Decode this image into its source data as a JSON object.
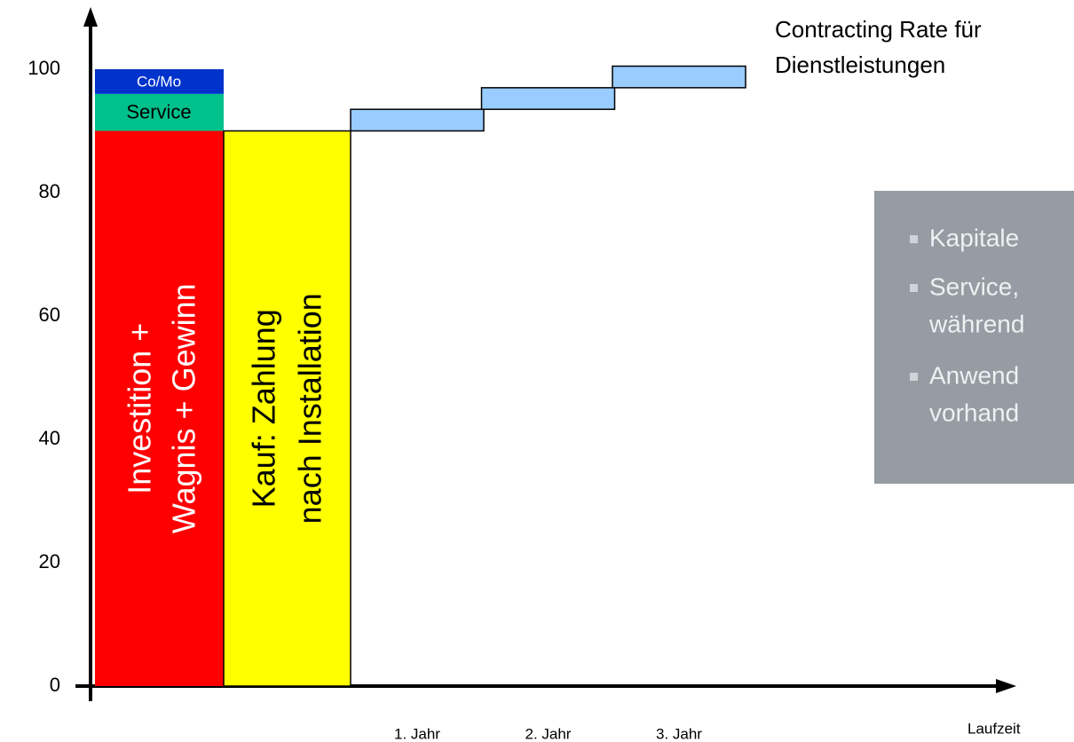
{
  "chart_data": {
    "type": "step",
    "title_lines": [
      "Contracting Rate für",
      "Dienstleistungen"
    ],
    "ylim": [
      0,
      100
    ],
    "yticks": [
      0,
      20,
      40,
      60,
      80,
      100
    ],
    "x_label": "Laufzeit",
    "stacked_bar": [
      {
        "lines": [
          "Investition +",
          "Wagnis + Gewinn"
        ],
        "value": 90,
        "color": "#ff0000"
      },
      {
        "lines": [
          "Service"
        ],
        "value": 6,
        "color": "#00c08c"
      },
      {
        "lines": [
          "Co/Mo"
        ],
        "value": 4,
        "color": "#0033cc"
      }
    ],
    "purchase_bar": {
      "lines": [
        "Kauf: Zahlung",
        "nach Installation"
      ],
      "value": 90,
      "color": "#ffff00"
    },
    "steps": {
      "categories": [
        "1. Jahr",
        "2. Jahr",
        "3. Jahr"
      ],
      "low": [
        90,
        93.5,
        97
      ],
      "high": [
        93.5,
        97,
        100.5
      ],
      "color": "#99ccff"
    },
    "info_box": {
      "bullets": [
        [
          "Kapitale"
        ],
        [
          "Service,",
          "während"
        ],
        [
          "Anwend",
          "vorhand"
        ]
      ]
    }
  }
}
